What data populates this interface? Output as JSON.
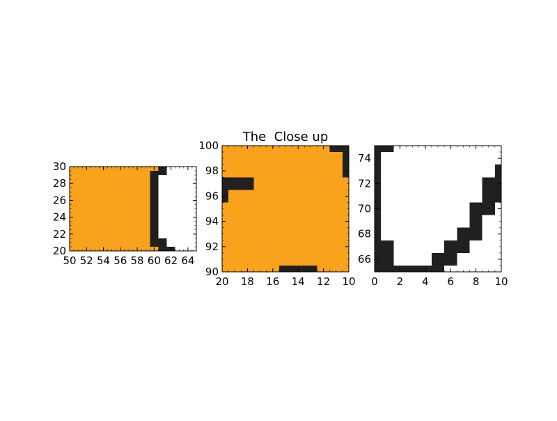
{
  "chart_data": [
    {
      "type": "heatmap",
      "title": "",
      "xlim": [
        50,
        65
      ],
      "ylim": [
        20,
        30
      ],
      "xticks": [
        50,
        52,
        54,
        56,
        58,
        60,
        62,
        64
      ],
      "yticks": [
        20,
        22,
        24,
        26,
        28,
        30
      ],
      "xticklabels": [
        "50",
        "52",
        "54",
        "56",
        "58",
        "60",
        "62",
        "64"
      ],
      "yticklabels": [
        "20",
        "22",
        "24",
        "26",
        "28",
        "30"
      ],
      "cells": [
        {
          "x": [
            50,
            59.5
          ],
          "y": [
            20,
            30
          ],
          "value": "orange"
        },
        {
          "x": [
            59.5,
            60.5
          ],
          "y": [
            20,
            30
          ],
          "value": "dark"
        },
        {
          "x": [
            60.5,
            61.5
          ],
          "y": [
            29,
            30
          ],
          "value": "dark"
        },
        {
          "x": [
            60.5,
            61.5
          ],
          "y": [
            20.5,
            21.5
          ],
          "value": "dark"
        },
        {
          "x": [
            60.5,
            62.5
          ],
          "y": [
            20,
            20.5
          ],
          "value": "dark"
        },
        {
          "x": [
            59.5,
            60.5
          ],
          "y": [
            29.5,
            30
          ],
          "value": "orange"
        },
        {
          "x": [
            59.5,
            60.5
          ],
          "y": [
            20,
            20.5
          ],
          "value": "orange"
        }
      ]
    },
    {
      "type": "heatmap",
      "title": "The  Close up",
      "xlim": [
        20,
        10
      ],
      "ylim": [
        90,
        100
      ],
      "xticks": [
        20,
        18,
        16,
        14,
        12,
        10
      ],
      "yticks": [
        90,
        92,
        94,
        96,
        98,
        100
      ],
      "xticklabels": [
        "20",
        "18",
        "16",
        "14",
        "12",
        "10"
      ],
      "yticklabels": [
        "90",
        "92",
        "94",
        "96",
        "98",
        "100"
      ],
      "cells": [
        {
          "x": [
            20,
            10
          ],
          "y": [
            90,
            100
          ],
          "value": "orange"
        },
        {
          "x": [
            20,
            17.5
          ],
          "y": [
            96.5,
            97.5
          ],
          "value": "dark"
        },
        {
          "x": [
            20,
            19.5
          ],
          "y": [
            95.5,
            96.5
          ],
          "value": "dark"
        },
        {
          "x": [
            15.5,
            12.5
          ],
          "y": [
            90,
            90.5
          ],
          "value": "dark"
        },
        {
          "x": [
            11.5,
            10
          ],
          "y": [
            99.5,
            100
          ],
          "value": "dark"
        },
        {
          "x": [
            10.5,
            10
          ],
          "y": [
            97.5,
            99.5
          ],
          "value": "dark"
        }
      ]
    },
    {
      "type": "heatmap",
      "title": "",
      "xlim": [
        0,
        10
      ],
      "ylim": [
        65,
        75
      ],
      "xticks": [
        0,
        2,
        4,
        6,
        8,
        10
      ],
      "yticks": [
        66,
        68,
        70,
        72,
        74
      ],
      "xticklabels": [
        "0",
        "2",
        "4",
        "6",
        "8",
        "10"
      ],
      "yticklabels": [
        "66",
        "68",
        "70",
        "72",
        "74"
      ],
      "cells": [
        {
          "x": [
            0,
            0.5
          ],
          "y": [
            65,
            75
          ],
          "value": "dark"
        },
        {
          "x": [
            0.5,
            1.5
          ],
          "y": [
            74.5,
            75
          ],
          "value": "dark"
        },
        {
          "x": [
            0.5,
            1.5
          ],
          "y": [
            65,
            67.5
          ],
          "value": "dark"
        },
        {
          "x": [
            1.5,
            5.5
          ],
          "y": [
            65,
            65.5
          ],
          "value": "dark"
        },
        {
          "x": [
            4.5,
            5.5
          ],
          "y": [
            65.5,
            66.5
          ],
          "value": "dark"
        },
        {
          "x": [
            5.5,
            6.5
          ],
          "y": [
            65.5,
            67.5
          ],
          "value": "dark"
        },
        {
          "x": [
            6.5,
            7.5
          ],
          "y": [
            66.5,
            68.5
          ],
          "value": "dark"
        },
        {
          "x": [
            7.5,
            8.5
          ],
          "y": [
            67.5,
            70.5
          ],
          "value": "dark"
        },
        {
          "x": [
            8.5,
            9.5
          ],
          "y": [
            69.5,
            72.5
          ],
          "value": "dark"
        },
        {
          "x": [
            9.5,
            10
          ],
          "y": [
            70.5,
            73.5
          ],
          "value": "dark"
        }
      ]
    }
  ],
  "colors": {
    "orange": "#f9a21c",
    "dark": "#221f1f",
    "white": "#ffffff",
    "axis": "#000000"
  }
}
